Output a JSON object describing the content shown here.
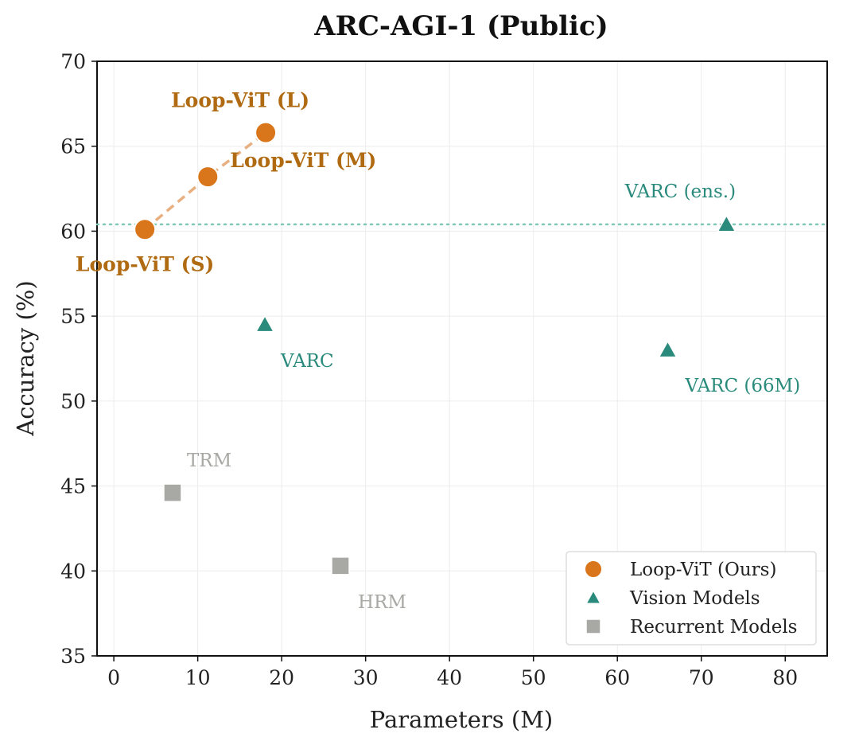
{
  "chart_data": {
    "type": "scatter",
    "title": "ARC-AGI-1 (Public)",
    "xlabel": "Parameters (M)",
    "ylabel": "Accuracy (%)",
    "xlim": [
      -2,
      85
    ],
    "ylim": [
      35,
      70
    ],
    "xticks": [
      0,
      10,
      20,
      30,
      40,
      50,
      60,
      70,
      80
    ],
    "yticks": [
      35,
      40,
      45,
      50,
      55,
      60,
      65,
      70
    ],
    "grid": true,
    "reference_line": {
      "y": 60.4,
      "style": "dotted",
      "color": "#7fc8b5"
    },
    "legend_position": "bottom-right",
    "series": [
      {
        "name": "Loop-ViT (Ours)",
        "marker": "circle",
        "color": "#d9751a",
        "label_color": "#b06b12",
        "connect_color": "#e8b080",
        "connected": true,
        "points": [
          {
            "x": 3.7,
            "y": 60.1,
            "label": "Loop-ViT (S)"
          },
          {
            "x": 11.2,
            "y": 63.2,
            "label": "Loop-ViT (M)"
          },
          {
            "x": 18.1,
            "y": 65.8,
            "label": "Loop-ViT (L)"
          }
        ]
      },
      {
        "name": "Vision Models",
        "marker": "triangle",
        "color": "#2a8a7c",
        "label_color": "#2a8a7c",
        "connected": false,
        "points": [
          {
            "x": 18.0,
            "y": 54.5,
            "label": "VARC"
          },
          {
            "x": 66.0,
            "y": 53.0,
            "label": "VARC (66M)"
          },
          {
            "x": 73.0,
            "y": 60.4,
            "label": "VARC (ens.)"
          }
        ]
      },
      {
        "name": "Recurrent Models",
        "marker": "square",
        "color": "#a8a8a4",
        "label_color": "#a8a8a4",
        "connected": false,
        "points": [
          {
            "x": 7.0,
            "y": 44.6,
            "label": "TRM"
          },
          {
            "x": 27.0,
            "y": 40.3,
            "label": "HRM"
          }
        ]
      }
    ]
  }
}
